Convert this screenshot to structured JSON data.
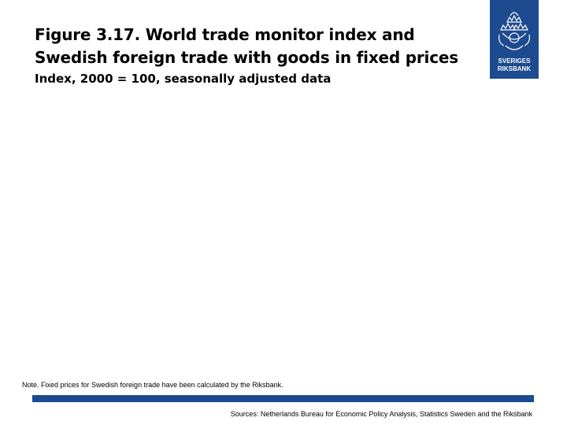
{
  "slide": {
    "title": "Figure  3.17. World trade monitor index and Swedish foreign trade with goods in fixed prices",
    "subtitle": "Index, 2000 = 100, seasonally adjusted data",
    "note": "Note. Fixed prices for Swedish foreign trade have been calculated by the Riksbank.",
    "sources": "Sources: Netherlands Bureau for Economic Policy Analysis, Statistics Sweden and the Riksbank"
  },
  "logo": {
    "line1": "SVERIGES",
    "line2": "RIKSBANK",
    "icon": "riksbank-crest-icon",
    "color": "#1d4b8f"
  },
  "colors": {
    "accent": "#1d4b8f",
    "background": "#ffffff",
    "text": "#000000"
  }
}
